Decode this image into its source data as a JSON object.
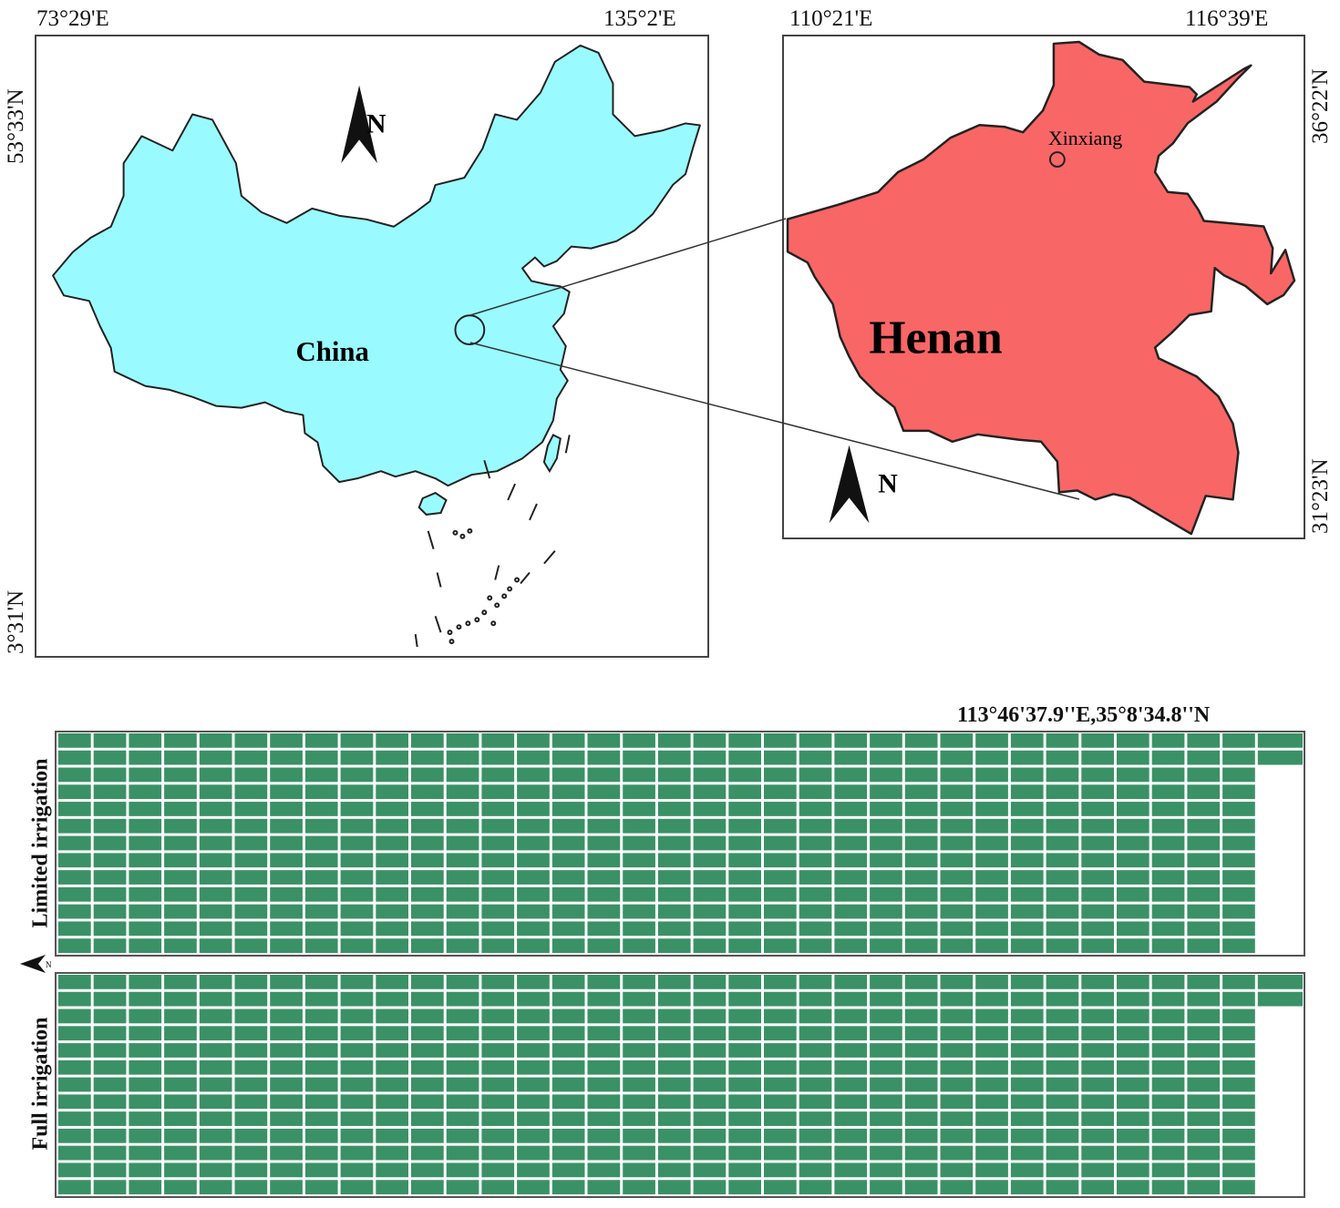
{
  "china_map": {
    "lon_left": "73°29'E",
    "lon_right": "135°2'E",
    "lat_top": "53°33'N",
    "lat_bottom": "3°31'N",
    "country_label": "China",
    "north_label": "N",
    "fill_color": "#99fbff"
  },
  "henan_map": {
    "lon_left": "110°21'E",
    "lon_right": "116°39'E",
    "lat_top": "36°22'N",
    "lat_bottom": "31°23'N",
    "province_label": "Henan",
    "city_label": "Xinxiang",
    "north_label": "N",
    "fill_color": "#f96666"
  },
  "field_layout": {
    "coordinate": "113°46'37.9''E,35°8'34.8''N",
    "north_label": "N",
    "plot_color": "#3a9166",
    "panels": [
      {
        "label": "Limited irrigation",
        "columns": 34,
        "rows": 13,
        "extra_column_rows": 2
      },
      {
        "label": "Full irrigation",
        "columns": 34,
        "rows": 13,
        "extra_column_rows": 2
      }
    ]
  }
}
